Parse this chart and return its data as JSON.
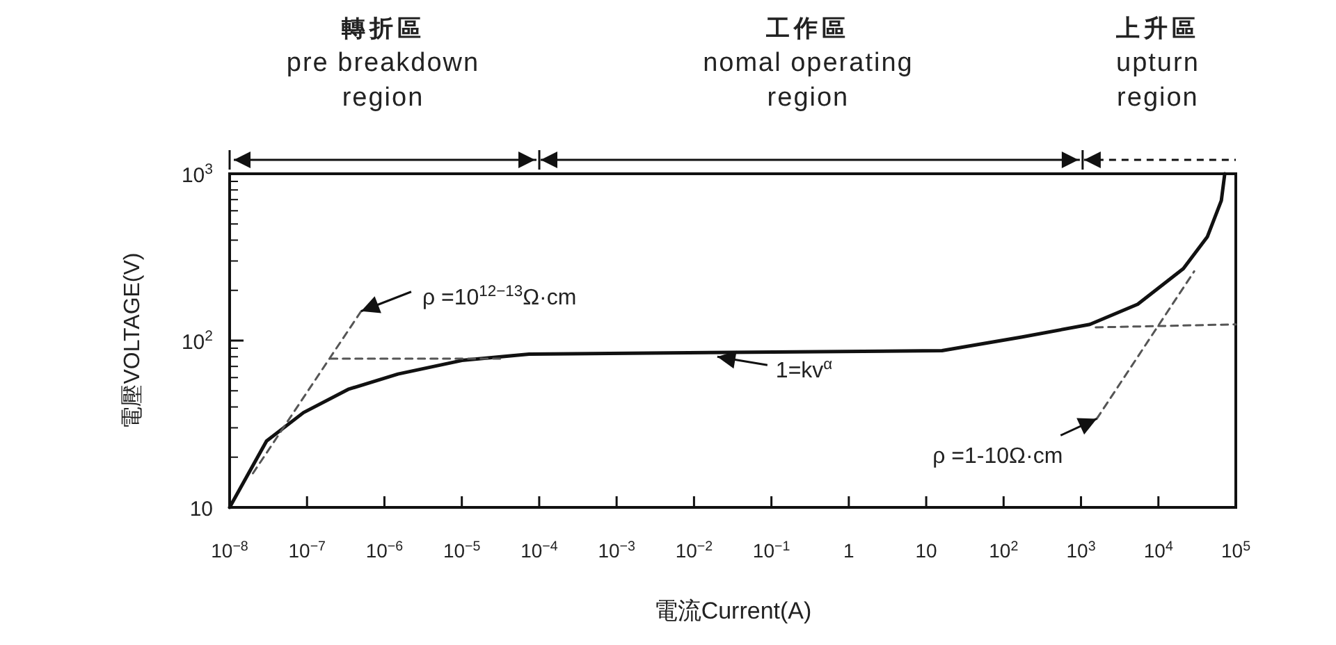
{
  "chart_data": {
    "type": "line",
    "log": "xy",
    "grid": false,
    "marker": "none",
    "xlabel": "電流Current(A)",
    "ylabel": "電壓VOLTAGE(V)",
    "xlim": [
      1e-08,
      100000.0
    ],
    "ylim": [
      10,
      1000
    ],
    "xticks": [
      {
        "value": 1e-08,
        "label": "10$^{−8}$"
      },
      {
        "value": 1e-07,
        "label": "10$^{−7}$"
      },
      {
        "value": 1e-06,
        "label": "10$^{−6}$"
      },
      {
        "value": 1e-05,
        "label": "10$^{−5}$"
      },
      {
        "value": 0.0001,
        "label": "10$^{−4}$"
      },
      {
        "value": 0.001,
        "label": "10$^{−3}$"
      },
      {
        "value": 0.01,
        "label": "10$^{−2}$"
      },
      {
        "value": 0.1,
        "label": "10$^{−1}$"
      },
      1,
      10,
      {
        "value": 100,
        "label": "10$^{2}$"
      },
      {
        "value": 1000,
        "label": "10$^{3}$"
      },
      {
        "value": 10000,
        "label": "10$^{4}$"
      },
      {
        "value": 100000,
        "label": "10$^{5}$"
      }
    ],
    "yticks": [
      10,
      {
        "value": 100,
        "label": "10$^{2}$"
      },
      {
        "value": 1000,
        "label": "10$^{3}$"
      }
    ],
    "series": [
      {
        "color": "#111111",
        "line_style": "solid",
        "x": [
          1e-08,
          3e-08,
          9e-08,
          3.4e-07,
          1.5e-06,
          1e-05,
          7.4e-05,
          16,
          170,
          1300,
          5400,
          21000,
          43000,
          65000,
          72000
        ],
        "values": [
          10,
          25,
          37,
          51,
          63,
          76,
          83,
          87,
          105,
          125,
          165,
          270,
          420,
          690,
          1000
        ]
      },
      {
        "color": "#555555",
        "line_style": "dashed",
        "x": [
          2e-08,
          5e-07
        ],
        "values": [
          16,
          150
        ]
      },
      {
        "color": "#555555",
        "line_style": "dashed",
        "x": [
          2e-07,
          3.2e-05
        ],
        "values": [
          78,
          78
        ]
      },
      {
        "color": "#555555",
        "line_style": "dashed",
        "x": [
          1550,
          100000
        ],
        "values": [
          120,
          125
        ]
      },
      {
        "color": "#555555",
        "line_style": "dashed",
        "x": [
          1600,
          29000
        ],
        "values": [
          34,
          260
        ]
      }
    ],
    "annotations": [
      {
        "text": "ρ =10$^{12−13}$Ω·cm",
        "x": 5e-07,
        "y": 150
      },
      {
        "text": "1=kv$^{α}$",
        "x": 0.02,
        "y": 80
      },
      {
        "text": "ρ =1-10Ω·cm",
        "x": 1600,
        "y": 34
      },
      "轉折區\npre  breakdown\nregion",
      "工作區\nnomal operating\nregion",
      "上升區\nupturn\nregion"
    ]
  }
}
